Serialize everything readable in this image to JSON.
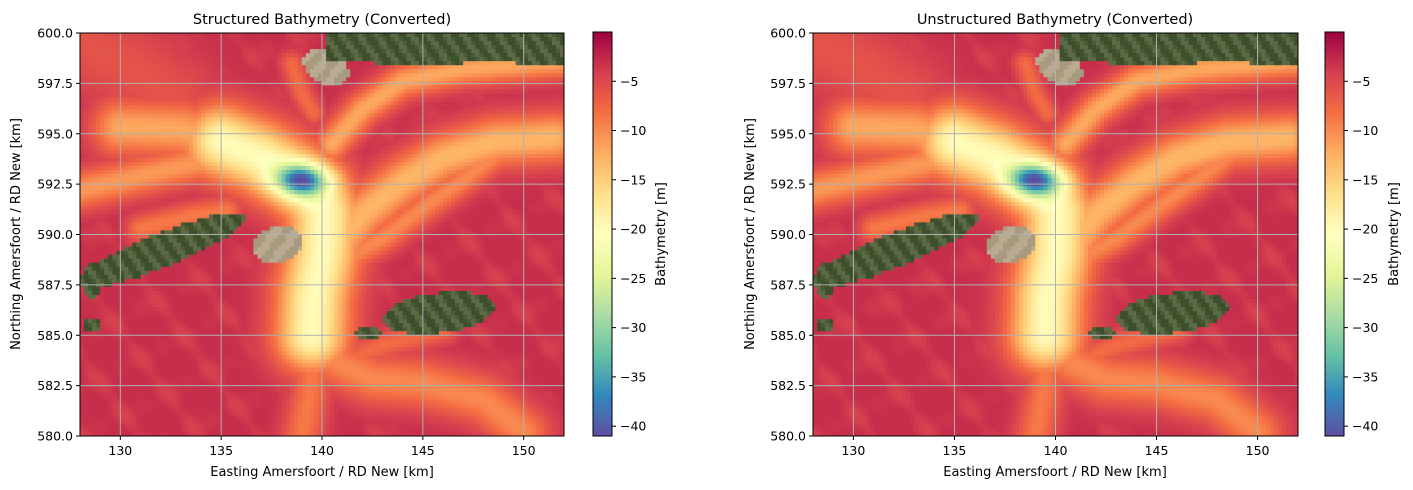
{
  "chart_data": [
    {
      "type": "heatmap",
      "title": "Structured Bathymetry (Converted)",
      "xlabel": "Easting Amersfoort / RD New [km]",
      "ylabel": "Northing Amersfoort / RD New [km]",
      "xlim": [
        128,
        152
      ],
      "ylim": [
        580.0,
        600.0
      ],
      "xticks": [
        "130",
        "135",
        "140",
        "145",
        "150"
      ],
      "xtick_values": [
        130,
        135,
        140,
        145,
        150
      ],
      "yticks": [
        "580.0",
        "582.5",
        "585.0",
        "587.5",
        "590.0",
        "592.5",
        "595.0",
        "597.5",
        "600.0"
      ],
      "ytick_values": [
        580.0,
        582.5,
        585.0,
        587.5,
        590.0,
        592.5,
        595.0,
        597.5,
        600.0
      ],
      "grid": true,
      "colorbar": {
        "label": "Bathymetry [m]",
        "range": [
          -41,
          0
        ],
        "ticks": [
          "−5",
          "−10",
          "−15",
          "−20",
          "−25",
          "−30",
          "−35",
          "−40"
        ],
        "tick_values": [
          -5,
          -10,
          -15,
          -20,
          -25,
          -30,
          -35,
          -40
        ],
        "colormap": "Spectral"
      },
      "deepest_value_m": -40.5
    },
    {
      "type": "heatmap",
      "title": "Unstructured Bathymetry (Converted)",
      "xlabel": "Easting Amersfoort / RD New [km]",
      "ylabel": "Northing Amersfoort / RD New [km]",
      "xlim": [
        128,
        152
      ],
      "ylim": [
        580.0,
        600.0
      ],
      "xticks": [
        "130",
        "135",
        "140",
        "145",
        "150"
      ],
      "xtick_values": [
        130,
        135,
        140,
        145,
        150
      ],
      "yticks": [
        "580.0",
        "582.5",
        "585.0",
        "587.5",
        "590.0",
        "592.5",
        "595.0",
        "597.5",
        "600.0"
      ],
      "ytick_values": [
        580.0,
        582.5,
        585.0,
        587.5,
        590.0,
        592.5,
        595.0,
        597.5,
        600.0
      ],
      "grid": true,
      "colorbar": {
        "label": "Bathymetry [m]",
        "range": [
          -41,
          0
        ],
        "ticks": [
          "−5",
          "−10",
          "−15",
          "−20",
          "−25",
          "−30",
          "−35",
          "−40"
        ],
        "tick_values": [
          -5,
          -10,
          -15,
          -20,
          -25,
          -30,
          -35,
          -40
        ],
        "colormap": "Spectral"
      },
      "deepest_value_m": -40.5
    }
  ],
  "colors": {
    "spectral_stops": [
      "#9e0142",
      "#d53e4f",
      "#f46d43",
      "#fdae61",
      "#fee08b",
      "#ffffbf",
      "#e6f598",
      "#abdda4",
      "#66c2a5",
      "#3288bd",
      "#5e4fa2"
    ],
    "land_green": "#4a5b35",
    "sand": "#b9ab92",
    "grid": "#b0b0b0"
  }
}
